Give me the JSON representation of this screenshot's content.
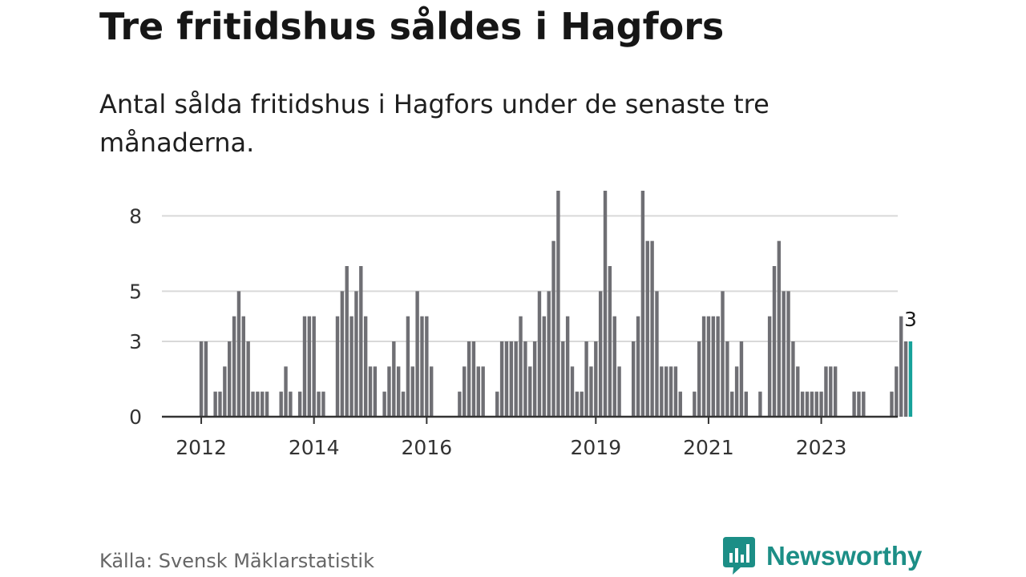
{
  "title": "Tre fritidshus såldes i Hagfors",
  "subtitle": "Antal sålda fritidshus i Hagfors under de senaste tre månaderna.",
  "source": "Källa: Svensk Mäklarstatistik",
  "brand": {
    "name": "Newsworthy",
    "icon": "newsworthy-logo-icon"
  },
  "colors": {
    "bar": "#6f6f74",
    "highlight": "#17a29a",
    "brand": "#1c8e86",
    "grid": "#d9d9d9",
    "axis": "#333333"
  },
  "chart_data": {
    "type": "bar",
    "title": "Tre fritidshus såldes i Hagfors",
    "subtitle": "Antal sålda fritidshus i Hagfors under de senaste tre månaderna.",
    "xlabel": "",
    "ylabel": "",
    "ylim": [
      0,
      9
    ],
    "y_ticks": [
      0,
      3,
      5,
      8
    ],
    "grid": true,
    "x_start": "2011-12",
    "frequency": "monthly",
    "x_ticks": [
      {
        "label": "2012",
        "date": "2012-01"
      },
      {
        "label": "2014",
        "date": "2014-01"
      },
      {
        "label": "2016",
        "date": "2016-01"
      },
      {
        "label": "2019",
        "date": "2019-01"
      },
      {
        "label": "2021",
        "date": "2021-01"
      },
      {
        "label": "2023",
        "date": "2023-01"
      }
    ],
    "values": [
      0,
      3,
      3,
      0,
      1,
      1,
      2,
      3,
      4,
      5,
      4,
      3,
      1,
      1,
      1,
      1,
      0,
      0,
      1,
      2,
      1,
      0,
      1,
      4,
      4,
      4,
      1,
      1,
      0,
      0,
      4,
      5,
      6,
      4,
      5,
      6,
      4,
      2,
      2,
      0,
      1,
      2,
      3,
      2,
      1,
      4,
      2,
      5,
      4,
      4,
      2,
      0,
      0,
      0,
      0,
      0,
      1,
      2,
      3,
      3,
      2,
      2,
      0,
      0,
      1,
      3,
      3,
      3,
      3,
      4,
      3,
      2,
      3,
      5,
      4,
      5,
      7,
      9,
      3,
      4,
      2,
      1,
      1,
      3,
      2,
      3,
      5,
      9,
      6,
      4,
      2,
      0,
      0,
      3,
      4,
      9,
      7,
      7,
      5,
      2,
      2,
      2,
      2,
      1,
      0,
      0,
      1,
      3,
      4,
      4,
      4,
      4,
      5,
      3,
      1,
      2,
      3,
      1,
      0,
      0,
      1,
      0,
      4,
      6,
      7,
      5,
      5,
      3,
      2,
      1,
      1,
      1,
      1,
      1,
      2,
      2,
      2,
      0,
      0,
      0,
      1,
      1,
      1,
      0,
      0,
      0,
      0,
      0,
      1,
      2,
      4,
      3,
      3
    ],
    "highlight_last": true,
    "last_label": "3"
  }
}
